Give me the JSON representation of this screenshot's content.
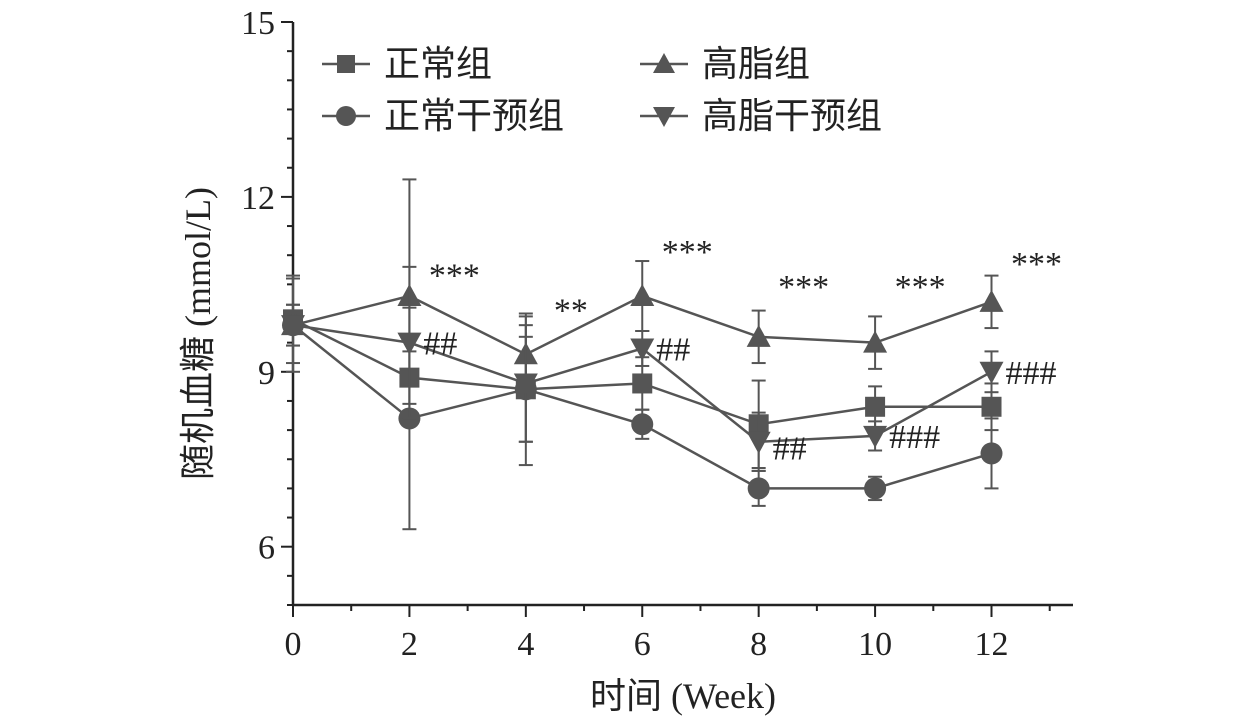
{
  "chart_data": {
    "type": "line",
    "xlabel": "时间 (Week)",
    "ylabel": "随机血糖 (mmol/L)",
    "xlim": [
      0,
      13.4
    ],
    "ylim": [
      5,
      15
    ],
    "xticks": [
      0,
      2,
      4,
      6,
      8,
      10,
      12
    ],
    "yticks": [
      6,
      9,
      12,
      15
    ],
    "x": [
      0,
      2,
      4,
      6,
      8,
      10,
      12
    ],
    "legend_position": "top-left",
    "grid": false,
    "colors": {
      "line": "#555555",
      "axis": "#222222"
    },
    "series": [
      {
        "name": "正常组",
        "marker": "square",
        "values": [
          9.9,
          8.9,
          8.7,
          8.8,
          8.1,
          8.4,
          8.4
        ],
        "errors": [
          0.75,
          0.45,
          0.9,
          0.45,
          0.75,
          0.35,
          0.4
        ]
      },
      {
        "name": "高脂组",
        "marker": "triangle-up",
        "values": [
          9.8,
          10.3,
          9.3,
          10.3,
          9.6,
          9.5,
          10.2
        ],
        "errors": [
          0.8,
          2.0,
          0.65,
          0.6,
          0.45,
          0.45,
          0.45
        ]
      },
      {
        "name": "正常干预组",
        "marker": "circle",
        "values": [
          9.8,
          8.2,
          8.7,
          8.1,
          7.0,
          7.0,
          7.6
        ],
        "errors": [
          0.35,
          1.9,
          1.3,
          0.25,
          0.3,
          0.2,
          0.6
        ]
      },
      {
        "name": "高脂干预组",
        "marker": "triangle-down",
        "values": [
          9.8,
          9.5,
          8.8,
          9.4,
          7.8,
          7.9,
          9.0
        ],
        "errors": [
          0.35,
          1.3,
          1.0,
          0.3,
          0.5,
          0.25,
          0.35
        ]
      }
    ],
    "annotations": [
      {
        "text": "***",
        "x": 2,
        "y": 10.6
      },
      {
        "text": "**",
        "x": 4,
        "y": 10.0
      },
      {
        "text": "***",
        "x": 6,
        "y": 11.0
      },
      {
        "text": "***",
        "x": 8,
        "y": 10.4
      },
      {
        "text": "***",
        "x": 10,
        "y": 10.4
      },
      {
        "text": "***",
        "x": 12,
        "y": 10.8
      },
      {
        "text": "##",
        "x": 2,
        "y": 9.5
      },
      {
        "text": "##",
        "x": 6,
        "y": 9.4
      },
      {
        "text": "##",
        "x": 8,
        "y": 7.7
      },
      {
        "text": "###",
        "x": 10,
        "y": 7.9
      },
      {
        "text": "###",
        "x": 12,
        "y": 9.0
      }
    ]
  }
}
